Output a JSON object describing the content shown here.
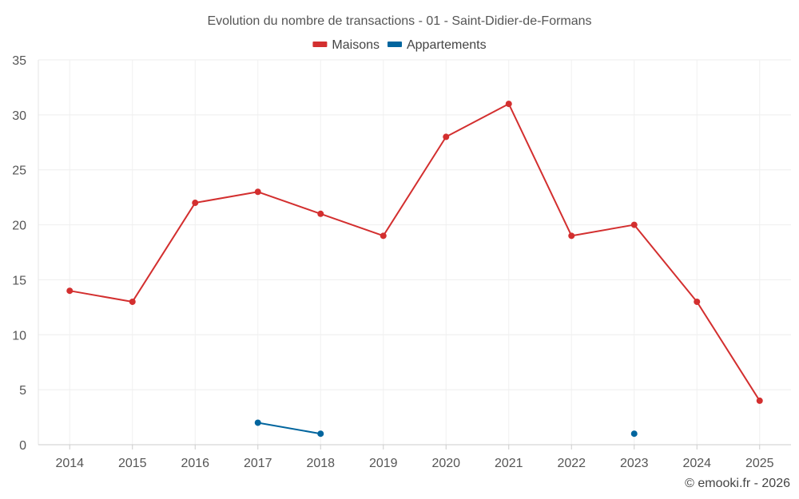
{
  "chart_data": {
    "type": "line",
    "title": "Evolution du nombre de transactions - 01 - Saint-Didier-de-Formans",
    "categories": [
      "2014",
      "2015",
      "2016",
      "2017",
      "2018",
      "2019",
      "2020",
      "2021",
      "2022",
      "2023",
      "2024",
      "2025"
    ],
    "series": [
      {
        "name": "Maisons",
        "color": "#d32f2f",
        "values": [
          14,
          13,
          22,
          23,
          21,
          19,
          28,
          31,
          19,
          20,
          13,
          4
        ]
      },
      {
        "name": "Appartements",
        "color": "#01659e",
        "values": [
          null,
          null,
          null,
          2,
          1,
          null,
          null,
          null,
          null,
          1,
          null,
          null
        ]
      }
    ],
    "ylim": [
      0,
      35
    ],
    "yticks": [
      0,
      5,
      10,
      15,
      20,
      25,
      30,
      35
    ],
    "xlabel": "",
    "ylabel": "",
    "legend": "top-center",
    "grid": true,
    "credit": "© emooki.fr - 2026"
  }
}
